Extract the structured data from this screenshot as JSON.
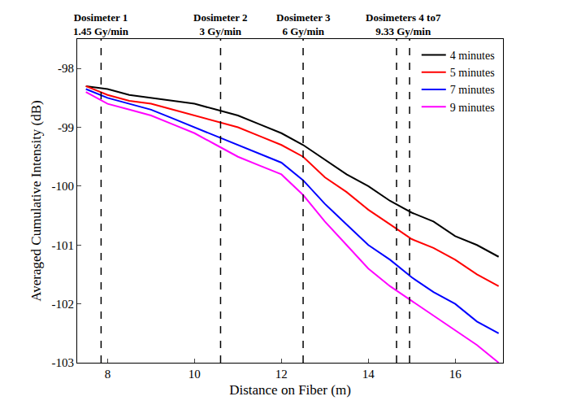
{
  "chart_data": {
    "type": "line",
    "x_label": "Distance on Fiber (m)",
    "y_label": "Averaged Cumulative Intensity (dB)",
    "x": [
      7.5,
      8,
      8.5,
      9,
      9.5,
      10,
      10.5,
      11,
      11.5,
      12,
      12.5,
      13,
      13.5,
      14,
      14.5,
      15,
      15.5,
      16,
      16.5,
      17
    ],
    "series": [
      {
        "name": "4 minutes",
        "color": "#000000",
        "values": [
          -98.3,
          -98.35,
          -98.45,
          -98.5,
          -98.55,
          -98.6,
          -98.7,
          -98.8,
          -98.95,
          -99.1,
          -99.3,
          -99.55,
          -99.8,
          -100.0,
          -100.25,
          -100.45,
          -100.6,
          -100.85,
          -101.0,
          -101.2
        ]
      },
      {
        "name": "5 minutes",
        "color": "#ff0000",
        "values": [
          -98.3,
          -98.45,
          -98.55,
          -98.6,
          -98.7,
          -98.8,
          -98.9,
          -99.0,
          -99.15,
          -99.3,
          -99.5,
          -99.85,
          -100.1,
          -100.4,
          -100.65,
          -100.9,
          -101.05,
          -101.25,
          -101.5,
          -101.7
        ]
      },
      {
        "name": "7 minutes",
        "color": "#0000ff",
        "values": [
          -98.35,
          -98.5,
          -98.6,
          -98.7,
          -98.85,
          -99.0,
          -99.15,
          -99.3,
          -99.45,
          -99.6,
          -99.9,
          -100.3,
          -100.65,
          -101.0,
          -101.25,
          -101.55,
          -101.8,
          -102.0,
          -102.3,
          -102.5
        ]
      },
      {
        "name": "9 minutes",
        "color": "#ff00ff",
        "values": [
          -98.4,
          -98.6,
          -98.7,
          -98.8,
          -98.95,
          -99.1,
          -99.3,
          -99.5,
          -99.65,
          -99.8,
          -100.15,
          -100.6,
          -101.0,
          -101.4,
          -101.7,
          -101.95,
          -102.2,
          -102.45,
          -102.7,
          -103.0
        ]
      }
    ],
    "xlim": [
      7.3,
      17.1
    ],
    "xticks": [
      8,
      10,
      12,
      14,
      16
    ],
    "ylim": [
      -103,
      -97.5
    ],
    "yticks": [
      -103,
      -102,
      -101,
      -100,
      -99,
      -98
    ],
    "grid": false,
    "legend": "top right",
    "annotations": [
      {
        "text": "Dosimeter 1\n1.45 Gy/min",
        "x": [
          7.85
        ]
      },
      {
        "text": "Dosimeter 2\n3 Gy/min",
        "x": [
          10.6
        ]
      },
      {
        "text": "Dosimeter 3\n6 Gy/min",
        "x": [
          12.5
        ]
      },
      {
        "text": "Dosimeters 4 to7\n9.33 Gy/min",
        "x": [
          14.65,
          14.95
        ]
      }
    ]
  }
}
